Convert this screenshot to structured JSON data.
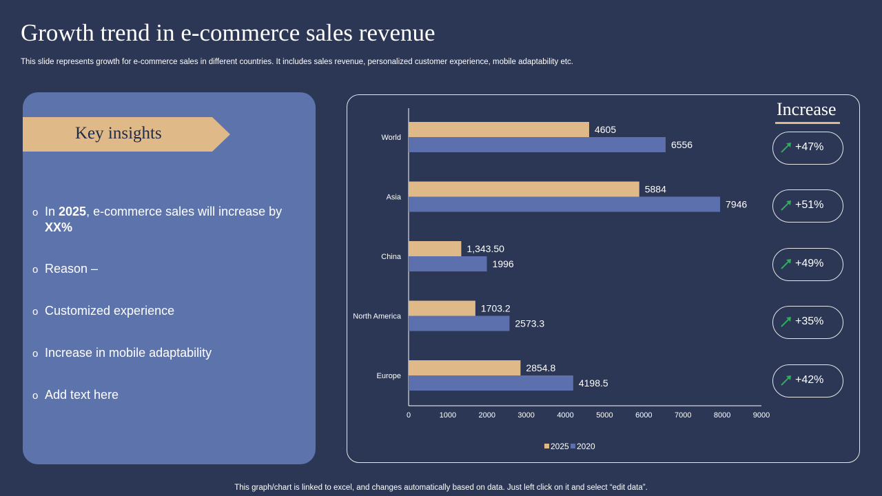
{
  "header": {
    "title": "Growth trend in e-commerce sales revenue",
    "subtitle": "This slide represents growth for e-commerce sales in different countries. It includes sales revenue, personalized customer experience, mobile adaptability etc."
  },
  "insights": {
    "heading": "Key insights",
    "bullet_mark": "o",
    "bullet1_pre": "In ",
    "bullet1_year": "2025",
    "bullet1_mid": ", e-commerce sales will increase by ",
    "bullet1_pct": "XX%",
    "bullet2": "Reason –",
    "bullet3": "Customized experience",
    "bullet4": "Increase in mobile adaptability",
    "bullet5": "Add text here"
  },
  "increase": {
    "title": "Increase",
    "items": [
      "+47%",
      "+51%",
      "+49%",
      "+35%",
      "+42%"
    ],
    "arrow_color": "#2fae5e"
  },
  "footer": {
    "note": "This graph/chart is linked to excel,  and changes automatically based on data. Just left click on it and select “edit data”."
  },
  "colors": {
    "background": "#2b3755",
    "panel": "#5d73ab",
    "accent": "#e0b988",
    "series_2025": "#e0b988",
    "series_2020": "#5b70ac"
  },
  "chart_data": {
    "type": "bar",
    "orientation": "horizontal",
    "categories": [
      "World",
      "Asia",
      "China",
      "North America",
      "Europe"
    ],
    "series": [
      {
        "name": "2025",
        "values": [
          4605,
          5884,
          1343.5,
          1703.2,
          2854.8
        ],
        "labels": [
          "4605",
          "5884",
          "1,343.50",
          "1703.2",
          "2854.8"
        ]
      },
      {
        "name": "2020",
        "values": [
          6556,
          7946,
          1996,
          2573.3,
          4198.5
        ],
        "labels": [
          "6556",
          "7946",
          "1996",
          "2573.3",
          "4198.5"
        ]
      }
    ],
    "xlim": [
      0,
      9000
    ],
    "xticks": [
      0,
      1000,
      2000,
      3000,
      4000,
      5000,
      6000,
      7000,
      8000,
      9000
    ],
    "xlabel": "",
    "ylabel": "",
    "legend": "bottom",
    "grid": false
  }
}
